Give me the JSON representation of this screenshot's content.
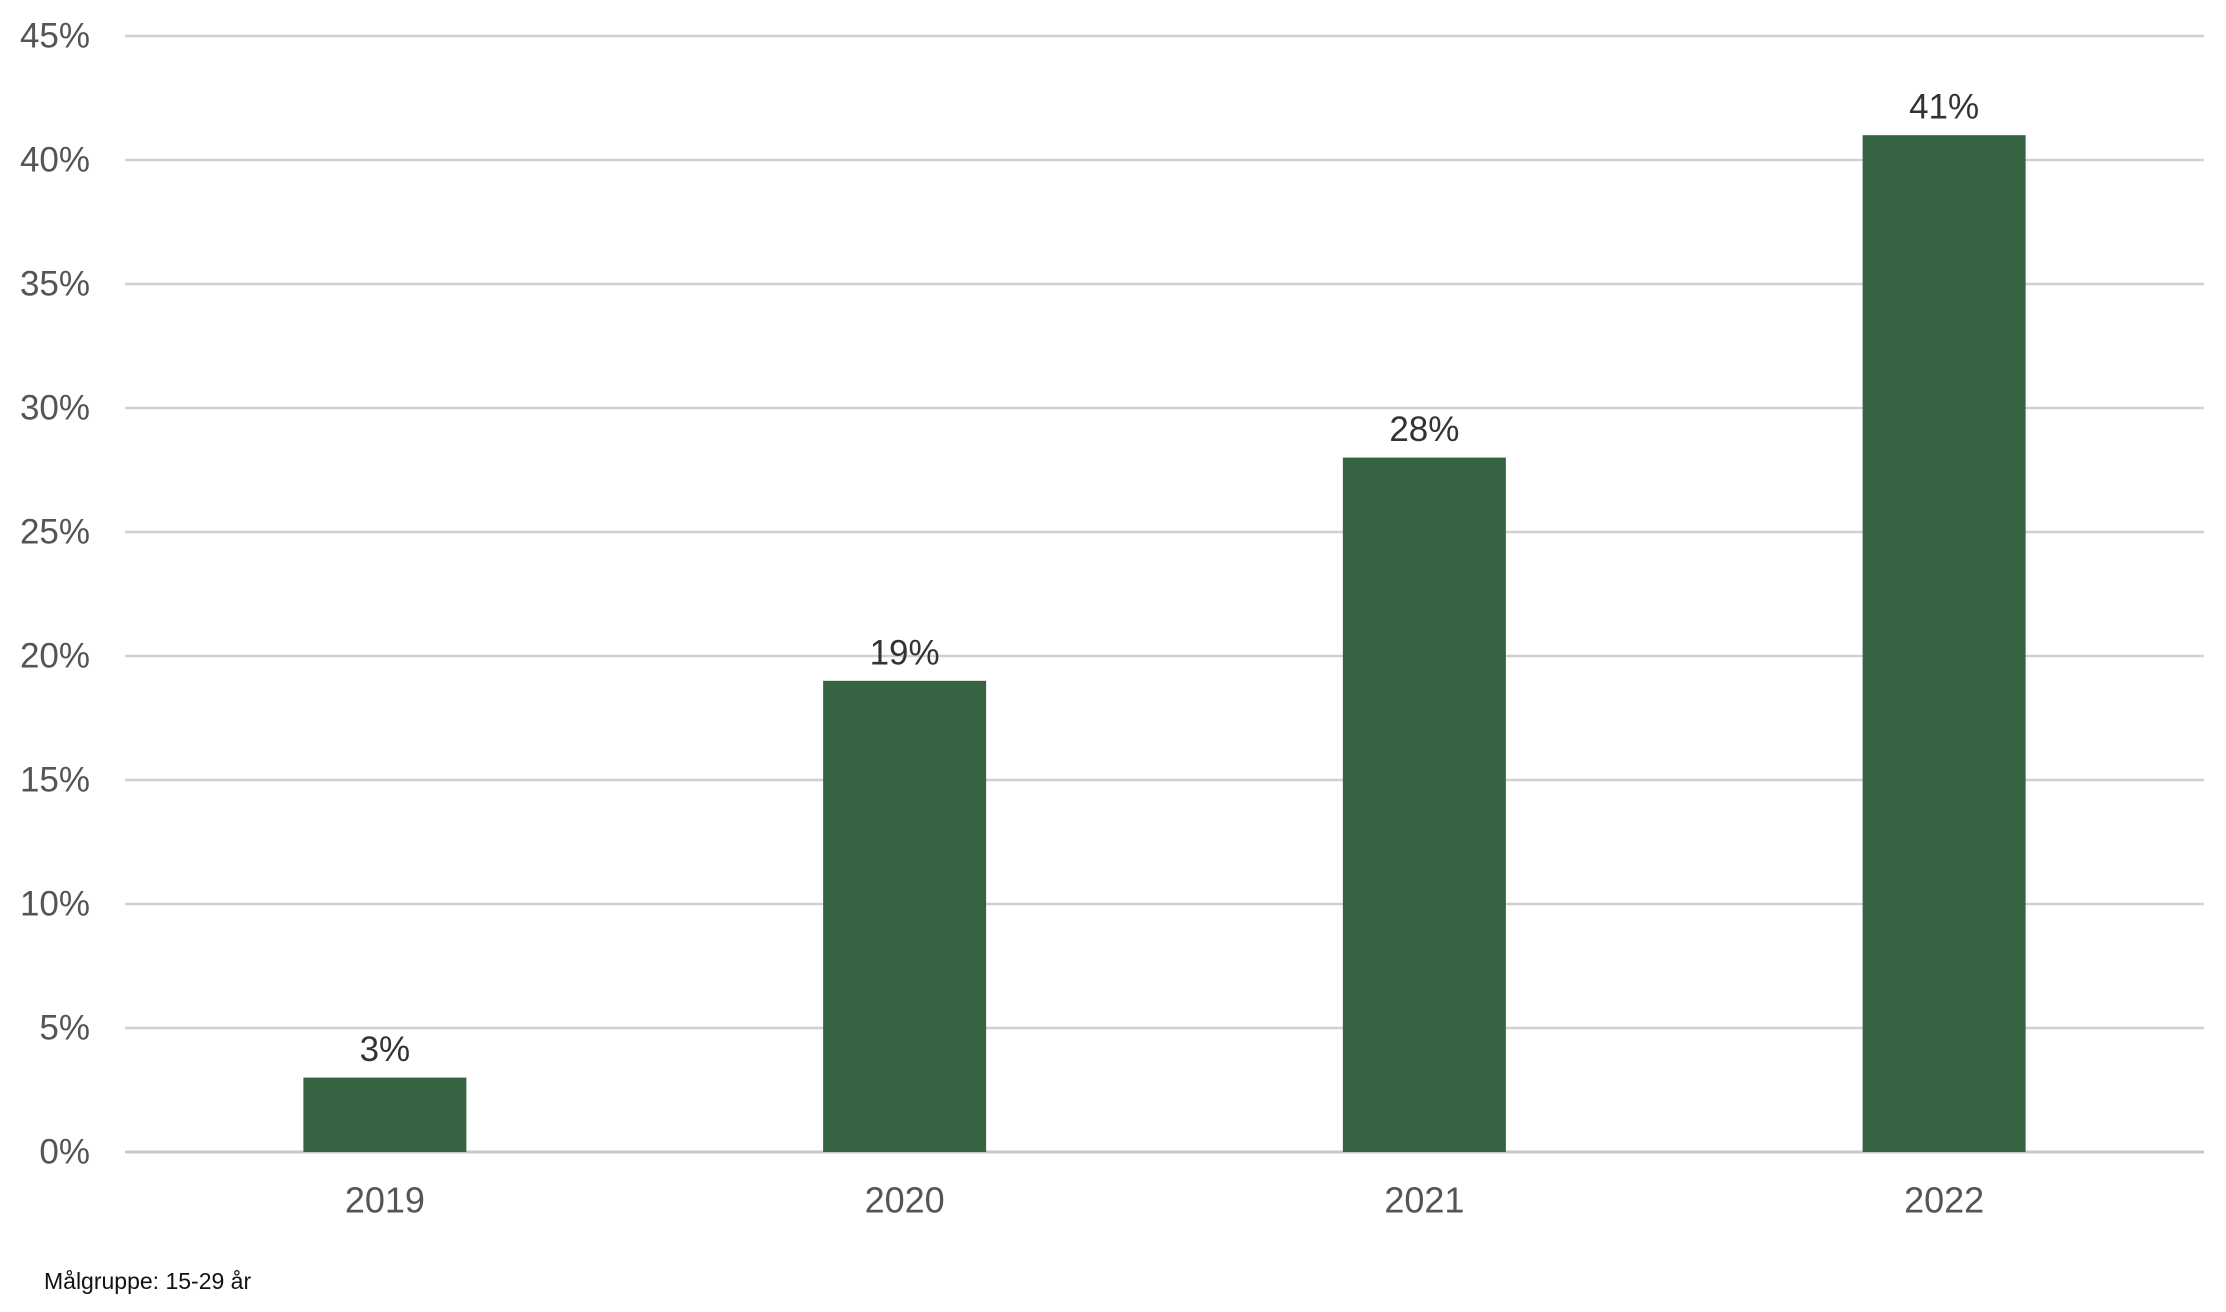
{
  "chart_data": {
    "type": "bar",
    "title": "",
    "xlabel": "",
    "ylabel": "",
    "categories": [
      "2019",
      "2020",
      "2021",
      "2022"
    ],
    "values": [
      3,
      19,
      28,
      41
    ],
    "value_labels": [
      "3%",
      "19%",
      "28%",
      "41%"
    ],
    "ylim": [
      0,
      45
    ],
    "y_ticks": [
      0,
      5,
      10,
      15,
      20,
      25,
      30,
      35,
      40,
      45
    ],
    "y_tick_labels": [
      "0%",
      "5%",
      "10%",
      "15%",
      "20%",
      "25%",
      "30%",
      "35%",
      "40%",
      "45%"
    ],
    "grid": true,
    "legend": "none",
    "bar_color": "#366342",
    "footnote": "Målgruppe: 15-29 år"
  }
}
